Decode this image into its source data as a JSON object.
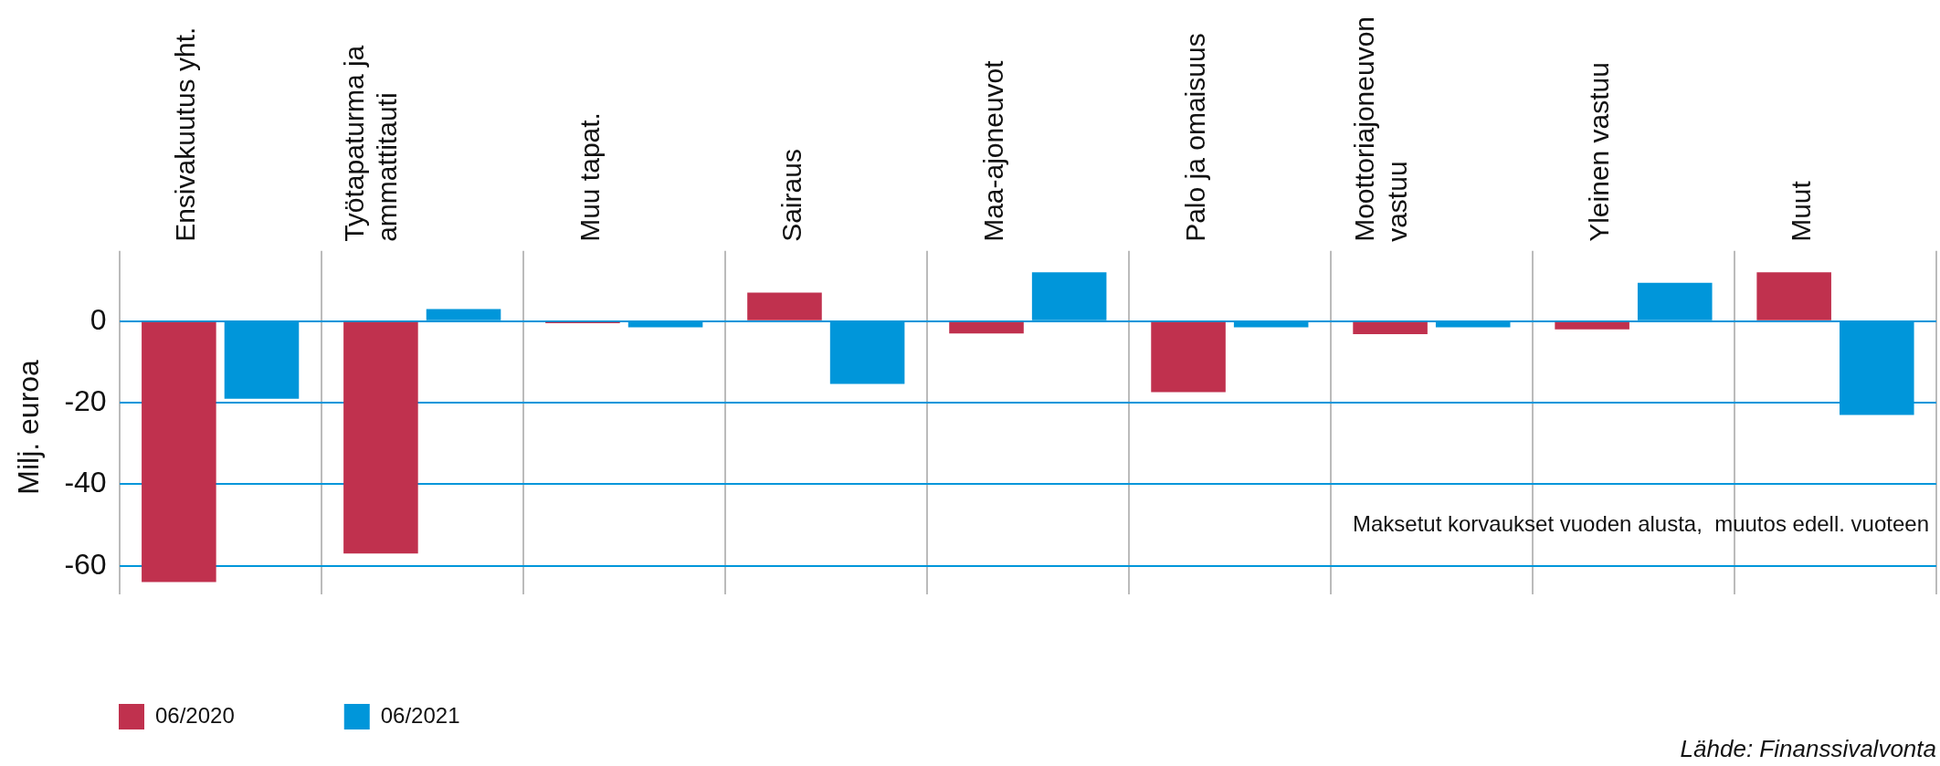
{
  "chart_data": {
    "type": "bar",
    "ylabel": "Milj. euroa",
    "categories": [
      "Ensivakuutus yht.",
      "Työtapaturma ja\nammattitauti",
      "Muu tapat.",
      "Sairaus",
      "Maa-ajoneuvot",
      "Palo ja omaisuus",
      "Moottoriajoneuvon\nvastuu",
      "Yleinen vastuu",
      "Muut"
    ],
    "series": [
      {
        "name": "06/2020",
        "color": "#c0314e",
        "values": [
          -64,
          -57,
          -0.5,
          7,
          -3,
          -17.4,
          -3.2,
          -2,
          12
        ]
      },
      {
        "name": "06/2021",
        "color": "#0096da",
        "values": [
          -19,
          3,
          -1.5,
          -15.4,
          12,
          -1.5,
          -1.5,
          9.4,
          -23
        ]
      }
    ],
    "ylim": [
      -67,
      15
    ],
    "yticks": [
      0,
      -20,
      -40,
      -60
    ],
    "grid": true,
    "legend": "bottom left",
    "annotations": [
      "Maksetut korvaukset vuoden alusta,  muutos edell. vuoteen",
      "Lähde: Finanssivalvonta"
    ]
  }
}
